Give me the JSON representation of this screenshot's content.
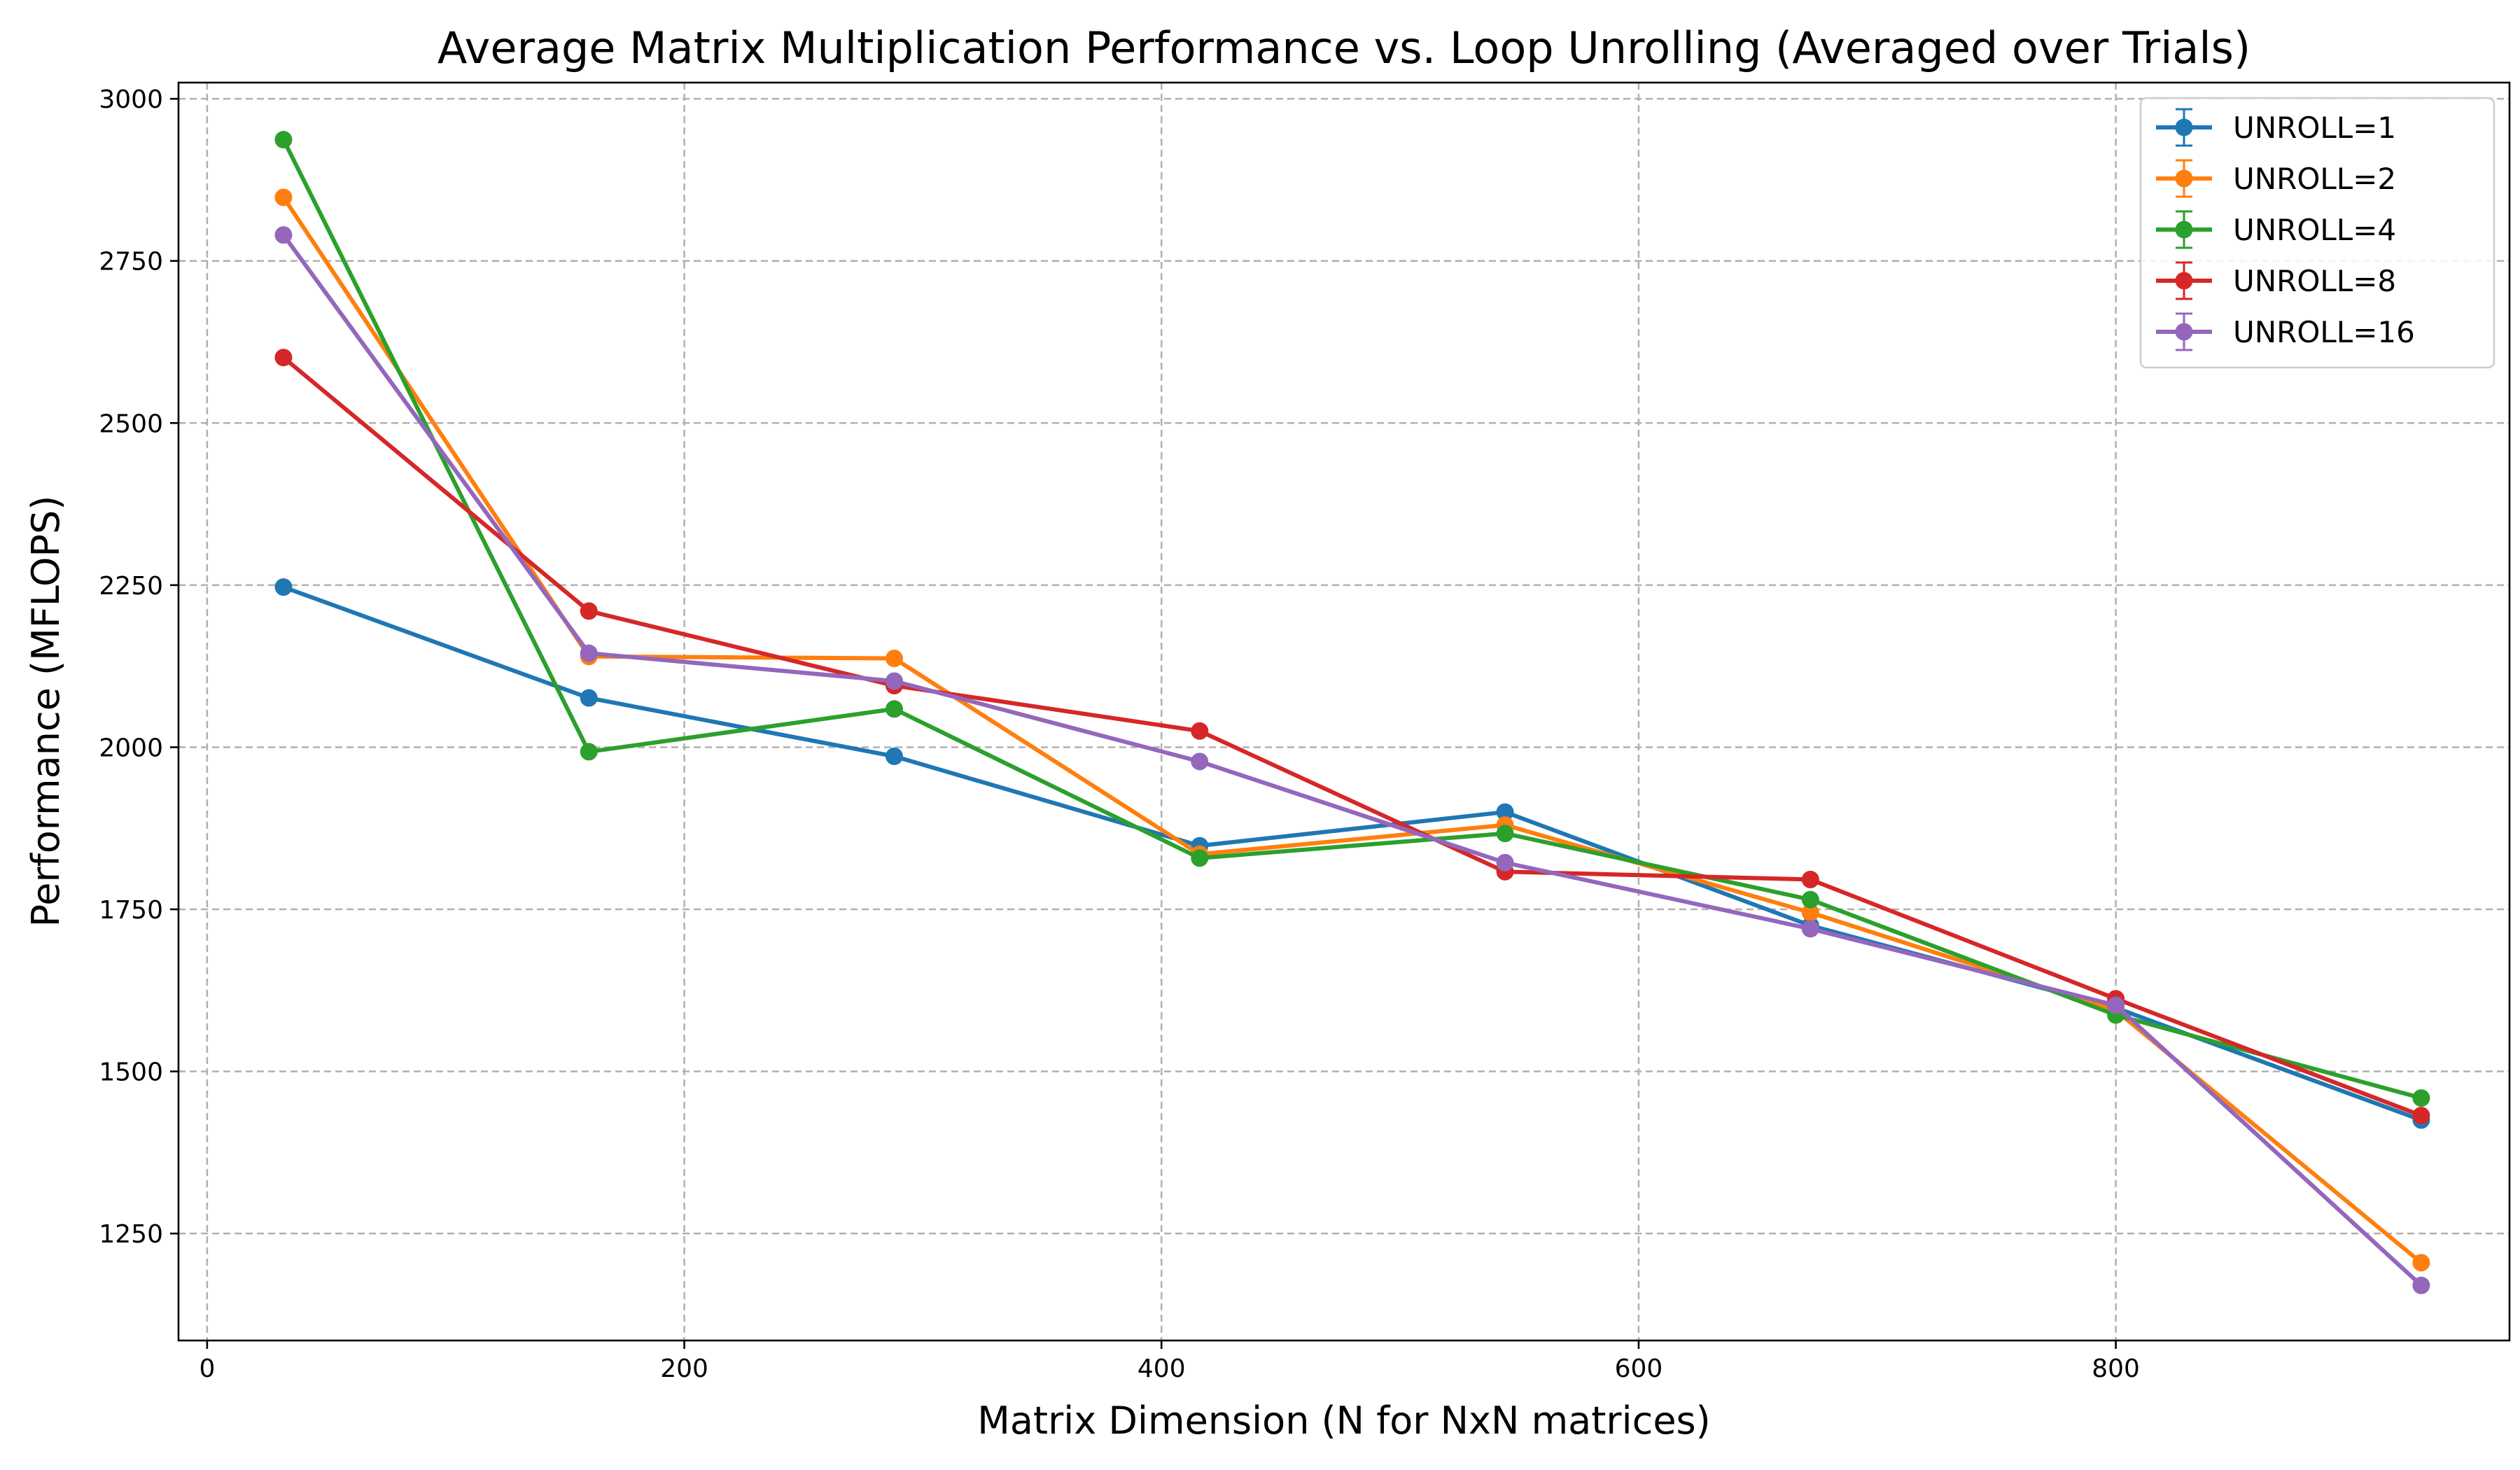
{
  "chart_data": {
    "type": "line",
    "title": "Average Matrix Multiplication Performance vs. Loop Unrolling (Averaged over Trials)",
    "xlabel": "Matrix Dimension (N for NxN matrices)",
    "ylabel": "Performance (MFLOPS)",
    "xlim": [
      -12,
      965
    ],
    "ylim": [
      1085,
      3025
    ],
    "xticks": [
      0,
      200,
      400,
      600,
      800
    ],
    "xtick_labels": [
      "0",
      "200",
      "400",
      "600",
      "800"
    ],
    "yticks": [
      1250,
      1500,
      1750,
      2000,
      2250,
      2500,
      2750,
      3000
    ],
    "ytick_labels": [
      "1250",
      "1500",
      "1750",
      "2000",
      "2250",
      "2500",
      "2750",
      "3000"
    ],
    "grid": true,
    "legend_position": "top-right",
    "x": [
      32,
      160,
      288,
      416,
      544,
      672,
      800,
      928
    ],
    "series": [
      {
        "name": "UNROLL=1",
        "color": "#1f77b4",
        "values": [
          2247,
          2076,
          1986,
          1848,
          1900,
          1725,
          1598,
          1425
        ]
      },
      {
        "name": "UNROLL=2",
        "color": "#ff7f0e",
        "values": [
          2848,
          2140,
          2137,
          1835,
          1880,
          1745,
          1594,
          1205
        ]
      },
      {
        "name": "UNROLL=4",
        "color": "#2ca02c",
        "values": [
          2937,
          1993,
          2059,
          1829,
          1867,
          1765,
          1587,
          1459
        ]
      },
      {
        "name": "UNROLL=8",
        "color": "#d62728",
        "values": [
          2601,
          2210,
          2095,
          2025,
          1808,
          1796,
          1612,
          1432
        ]
      },
      {
        "name": "UNROLL=16",
        "color": "#9467bd",
        "values": [
          2790,
          2145,
          2102,
          1978,
          1822,
          1720,
          1602,
          1170
        ]
      }
    ]
  }
}
